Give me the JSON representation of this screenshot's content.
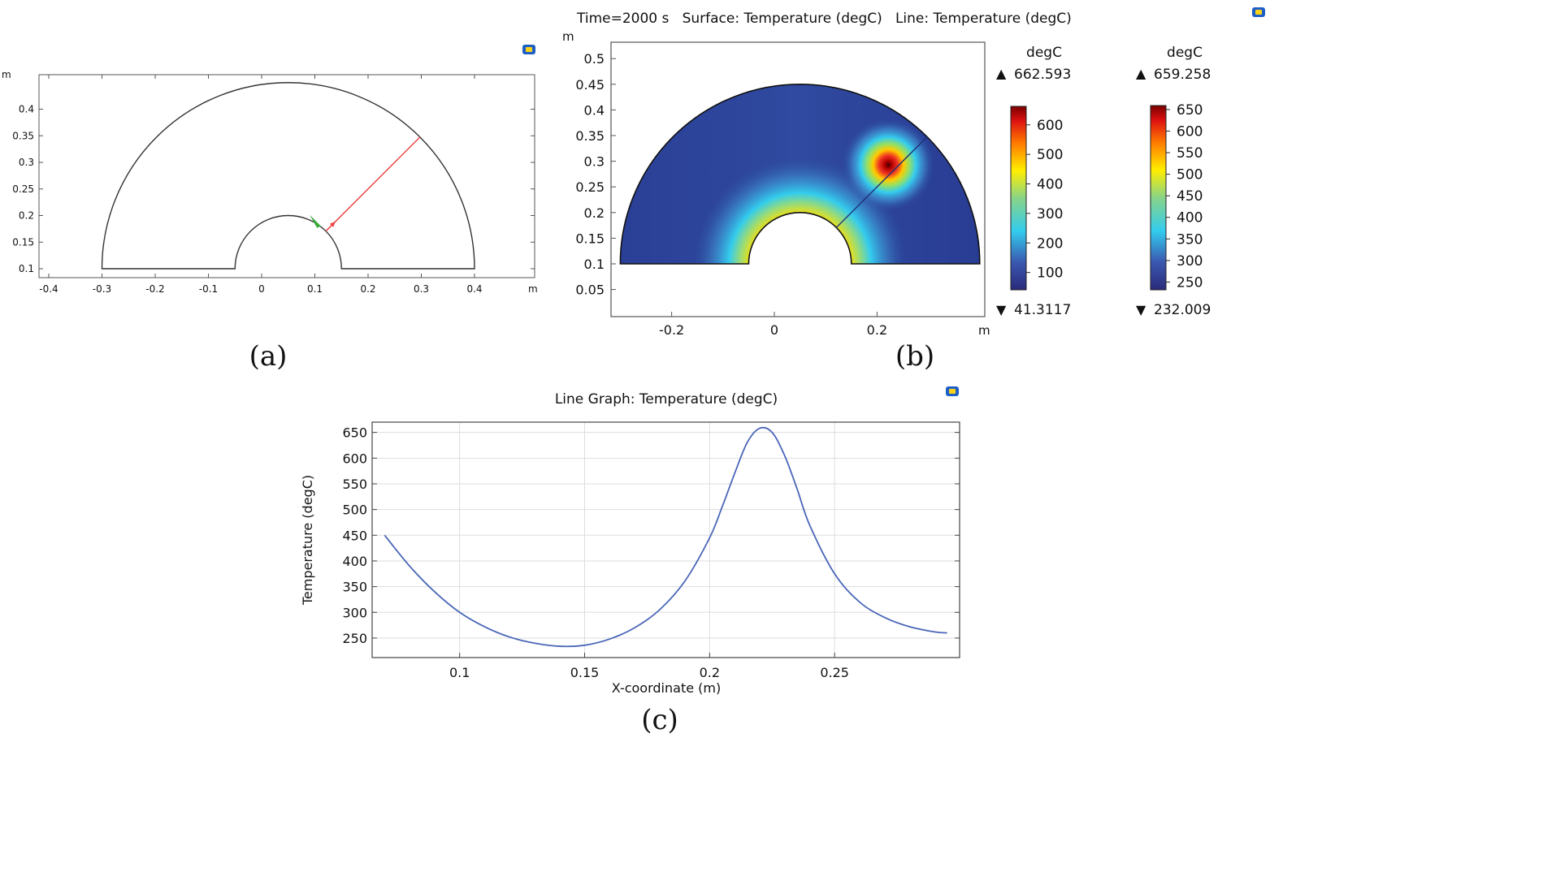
{
  "colors": {
    "line": "#4a66b8",
    "geom": "#333333",
    "cut": "#ee4444",
    "green": "#3aa93a",
    "grid": "#d8d8d8"
  },
  "captions": {
    "a": "(a)",
    "b": "(b)",
    "c": "(c)"
  },
  "panel_a": {
    "unit_x": "m",
    "unit_y": "m",
    "x_ticks": [
      -0.4,
      -0.3,
      -0.2,
      -0.1,
      0,
      0.1,
      0.2,
      0.3,
      0.4
    ],
    "x_tick_labels": [
      "-0.4",
      "-0.3",
      "-0.2",
      "-0.1",
      "0",
      "0.1",
      "0.2",
      "0.3",
      "0.4"
    ],
    "y_ticks": [
      0.1,
      0.15,
      0.2,
      0.25,
      0.3,
      0.35,
      0.4
    ],
    "y_tick_labels": [
      "0.1",
      "0.15",
      "0.2",
      "0.25",
      "0.3",
      "0.35",
      "0.4"
    ],
    "icon": "view-icon"
  },
  "panel_b": {
    "title": "Time=2000 s   Surface: Temperature (degC)   Line: Temperature (degC)",
    "unit_x": "m",
    "unit_y": "m",
    "x_ticks": [
      -0.2,
      0,
      0.2
    ],
    "x_tick_labels": [
      "-0.2",
      "0",
      "0.2"
    ],
    "y_ticks": [
      0.05,
      0.1,
      0.15,
      0.2,
      0.25,
      0.3,
      0.35,
      0.4,
      0.45,
      0.5
    ],
    "y_tick_labels": [
      "0.05",
      "0.1",
      "0.15",
      "0.2",
      "0.25",
      "0.3",
      "0.35",
      "0.4",
      "0.45",
      "0.5"
    ],
    "surface_legend": {
      "unit": "degC",
      "max": "662.593",
      "min": "41.3117",
      "max_value": 662.593,
      "min_value": 41.3117,
      "ticks": [
        100,
        200,
        300,
        400,
        500,
        600
      ],
      "tick_labels": [
        "100",
        "200",
        "300",
        "400",
        "500",
        "600"
      ]
    },
    "line_legend": {
      "unit": "degC",
      "max": "659.258",
      "min": "232.009",
      "max_value": 659.258,
      "min_value": 232.009,
      "ticks": [
        250,
        300,
        350,
        400,
        450,
        500,
        550,
        600,
        650
      ],
      "tick_labels": [
        "250",
        "300",
        "350",
        "400",
        "450",
        "500",
        "550",
        "600",
        "650"
      ]
    },
    "markers": {
      "max": "▲",
      "min": "▼"
    },
    "icon": "view-icon"
  },
  "chart_data": {
    "type": "line",
    "title": "Line Graph: Temperature (degC)",
    "xlabel": "X-coordinate (m)",
    "ylabel": "Temperature (degC)",
    "xlim": [
      0.065,
      0.3
    ],
    "ylim": [
      212,
      670
    ],
    "grid": true,
    "x_ticks": [
      0.1,
      0.15,
      0.2,
      0.25
    ],
    "x_tick_labels": [
      "0.1",
      "0.15",
      "0.2",
      "0.25"
    ],
    "y_ticks": [
      250,
      300,
      350,
      400,
      450,
      500,
      550,
      600,
      650
    ],
    "y_tick_labels": [
      "250",
      "300",
      "350",
      "400",
      "450",
      "500",
      "550",
      "600",
      "650"
    ],
    "series": [
      {
        "name": "Temperature",
        "x": [
          0.07,
          0.08,
          0.09,
          0.1,
          0.11,
          0.12,
          0.13,
          0.14,
          0.15,
          0.16,
          0.17,
          0.18,
          0.19,
          0.2,
          0.205,
          0.21,
          0.215,
          0.22,
          0.225,
          0.23,
          0.235,
          0.24,
          0.25,
          0.26,
          0.27,
          0.28,
          0.29,
          0.295
        ],
        "values": [
          450,
          390,
          340,
          300,
          272,
          252,
          240,
          234,
          236,
          248,
          270,
          305,
          360,
          445,
          505,
          570,
          630,
          658,
          650,
          605,
          540,
          470,
          375,
          320,
          290,
          272,
          262,
          260
        ]
      }
    ],
    "icon": "view-icon"
  }
}
